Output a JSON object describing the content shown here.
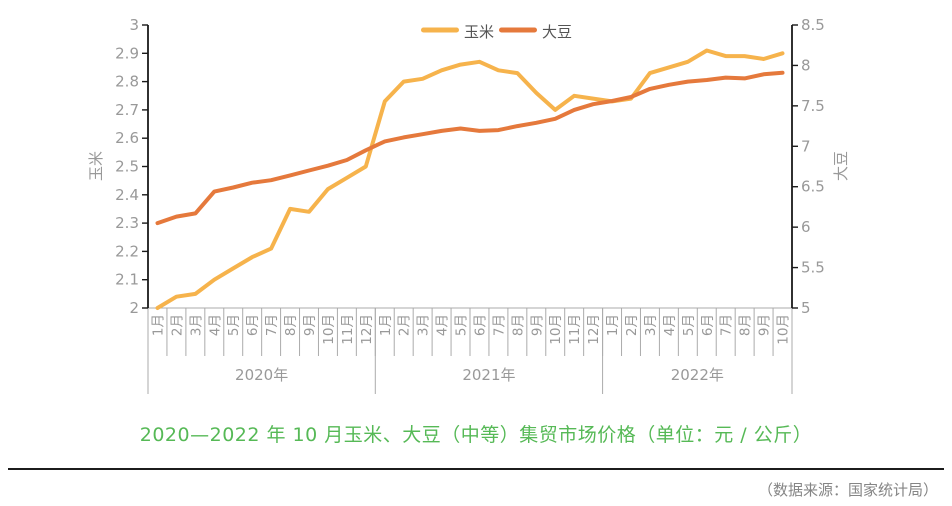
{
  "chart_data": {
    "type": "line",
    "title": "2020—2022 年 10 月玉米、大豆（中等）集贸市场价格（单位：元 / 公斤）",
    "source_note": "（数据来源：国家统计局）",
    "legend_position": "top-center",
    "grid": false,
    "x_groups": [
      {
        "year": "2020年",
        "months": [
          "1月",
          "2月",
          "3月",
          "4月",
          "5月",
          "6月",
          "7月",
          "8月",
          "9月",
          "10月",
          "11月",
          "12月"
        ]
      },
      {
        "year": "2021年",
        "months": [
          "1月",
          "2月",
          "3月",
          "4月",
          "5月",
          "6月",
          "7月",
          "8月",
          "9月",
          "10月",
          "11月",
          "12月"
        ]
      },
      {
        "year": "2022年",
        "months": [
          "1月",
          "2月",
          "3月",
          "4月",
          "5月",
          "6月",
          "7月",
          "8月",
          "9月",
          "10月"
        ]
      }
    ],
    "left_axis": {
      "name": "玉米",
      "min": 2,
      "max": 3,
      "step": 0.1,
      "ticks": [
        "2",
        "2.1",
        "2.2",
        "2.3",
        "2.4",
        "2.5",
        "2.6",
        "2.7",
        "2.8",
        "2.9",
        "3"
      ]
    },
    "right_axis": {
      "name": "大豆",
      "min": 5,
      "max": 8.5,
      "step": 0.5,
      "ticks": [
        "5",
        "5.5",
        "6",
        "6.5",
        "7",
        "7.5",
        "8",
        "8.5"
      ]
    },
    "series": [
      {
        "name": "玉米",
        "axis": "left",
        "color": "#F6B34C",
        "values": [
          2.0,
          2.04,
          2.05,
          2.1,
          2.14,
          2.18,
          2.21,
          2.35,
          2.34,
          2.42,
          2.46,
          2.5,
          2.73,
          2.8,
          2.81,
          2.84,
          2.86,
          2.87,
          2.84,
          2.83,
          2.76,
          2.7,
          2.75,
          2.74,
          2.73,
          2.74,
          2.83,
          2.85,
          2.87,
          2.91,
          2.89,
          2.89,
          2.88,
          2.9
        ]
      },
      {
        "name": "大豆",
        "axis": "right",
        "color": "#E5793C",
        "values": [
          6.05,
          6.13,
          6.17,
          6.44,
          6.49,
          6.55,
          6.58,
          6.64,
          6.7,
          6.76,
          6.83,
          6.95,
          7.06,
          7.11,
          7.15,
          7.19,
          7.22,
          7.19,
          7.2,
          7.25,
          7.29,
          7.34,
          7.45,
          7.52,
          7.56,
          7.61,
          7.71,
          7.76,
          7.8,
          7.82,
          7.85,
          7.84,
          7.89,
          7.91
        ]
      }
    ]
  },
  "styles": {
    "title_color": "#56B956",
    "axis_text_color": "#999999",
    "axis_line_color": "#1A1A1A",
    "grid_line_color": "#ABABAB",
    "legend_text_color": "#555555",
    "rule_color": "#1C1C1C",
    "source_color": "#858585"
  }
}
